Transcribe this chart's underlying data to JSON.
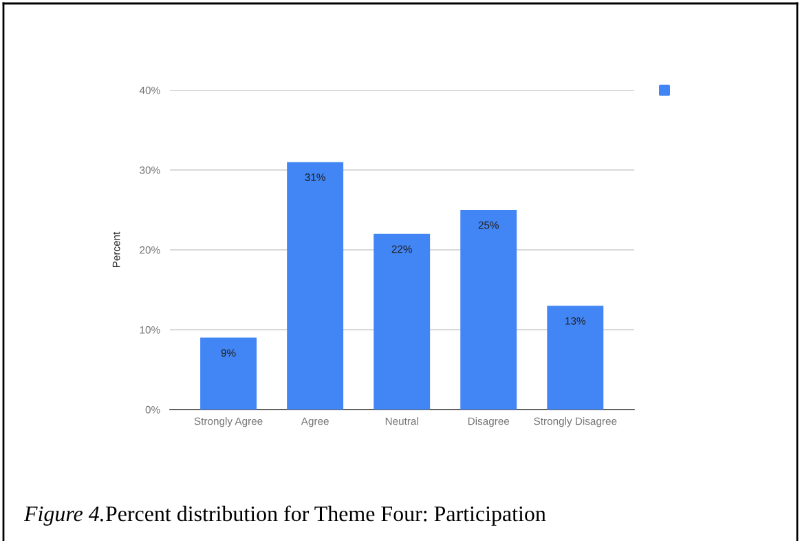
{
  "chart_data": {
    "type": "bar",
    "categories": [
      "Strongly Agree",
      "Agree",
      "Neutral",
      "Disagree",
      "Strongly Disagree"
    ],
    "series": [
      {
        "color": "#4285f4",
        "values": [
          9,
          31,
          22,
          25,
          13
        ]
      }
    ],
    "value_labels": [
      "9%",
      "31%",
      "22%",
      "25%",
      "13%"
    ],
    "ylabel": "Percent",
    "ylim": [
      0,
      40
    ],
    "yticks": [
      {
        "value": 0,
        "label": "0%"
      },
      {
        "value": 10,
        "label": "10%"
      },
      {
        "value": 20,
        "label": "20%"
      },
      {
        "value": 30,
        "label": "30%"
      },
      {
        "value": 40,
        "label": "40%"
      }
    ],
    "grid": "y",
    "annotations": [
      "Figure 4.",
      "Percent distribution for Theme Four: Participation"
    ]
  }
}
